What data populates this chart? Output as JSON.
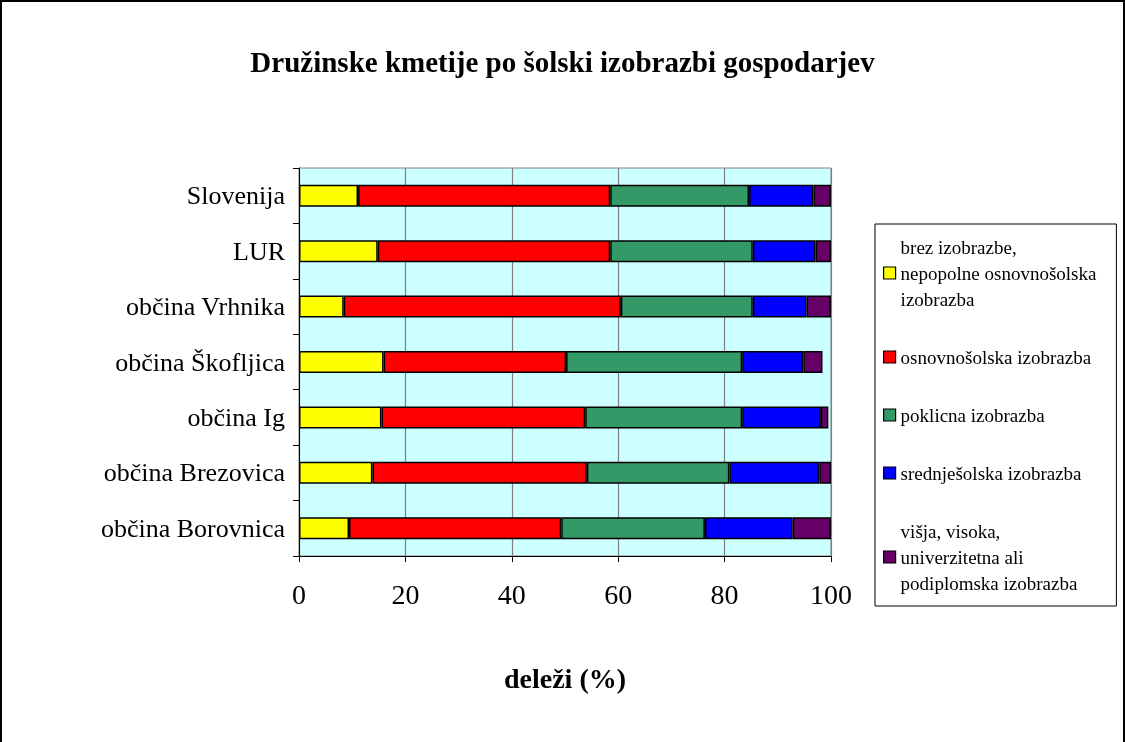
{
  "chart_data": {
    "type": "bar",
    "title": "Družinske kmetije po šolski izobrazbi gospodarjev",
    "xlabel": "deleži (%)",
    "categories": [
      "Slovenija",
      "LUR",
      "občina Vrhnika",
      "občina Škofljica",
      "občina Ig",
      "občina Brezovica",
      "občina Borovnica"
    ],
    "series": [
      {
        "name": "brez izobrazbe, nepopolne osnovnošolska izobrazba",
        "color": "#ffff00",
        "values": [
          11.1,
          14.8,
          8.4,
          15.9,
          15.5,
          13.8,
          9.4
        ]
      },
      {
        "name": "osnovnošolska izobrazba",
        "color": "#ff0000",
        "values": [
          47.4,
          43.7,
          52.1,
          34.3,
          38.3,
          40.3,
          39.9
        ]
      },
      {
        "name": "poklicna izobrazba",
        "color": "#339966",
        "values": [
          26.1,
          26.8,
          24.8,
          33.1,
          29.5,
          26.8,
          27.0
        ]
      },
      {
        "name": "srednješolska izobrazba",
        "color": "#0000ff",
        "values": [
          12.1,
          11.8,
          10.1,
          11.5,
          14.8,
          16.9,
          16.5
        ]
      },
      {
        "name": "višja, visoka, univerzitetna ali podiplomska izobrazba",
        "color": "#660066",
        "values": [
          3.3,
          2.9,
          4.6,
          3.6,
          1.4,
          2.2,
          7.2
        ]
      }
    ],
    "stacked": true,
    "orientation": "horizontal",
    "xlim": [
      0,
      100
    ],
    "xticks": [
      0,
      20,
      40,
      60,
      80,
      100
    ],
    "grid": "x",
    "legend": "right"
  }
}
